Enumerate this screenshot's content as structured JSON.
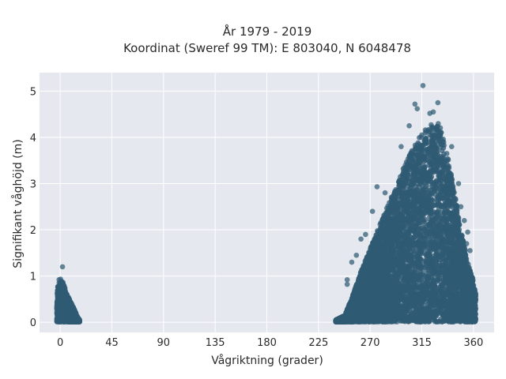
{
  "chart_data": {
    "type": "scatter",
    "title_line1": "År 1979 - 2019",
    "title_line2": "Koordinat (Sweref 99 TM): E 803040, N 6048478",
    "xlabel": "Vågriktning (grader)",
    "ylabel": "Signifikant våghöjd (m)",
    "xlim": [
      -18,
      378
    ],
    "ylim": [
      -0.22,
      5.4
    ],
    "xticks": [
      0,
      45,
      90,
      135,
      180,
      225,
      270,
      315,
      360
    ],
    "yticks": [
      0,
      1,
      2,
      3,
      4,
      5
    ],
    "grid": true,
    "marker_color": "#2f5a73",
    "background_color": "#e5e8ef",
    "grid_color": "#ffffff",
    "clusters": [
      {
        "description": "north sector",
        "x_range": [
          -3,
          17
        ],
        "y_max_envelope": [
          [
            -3,
            0.7
          ],
          [
            0,
            0.95
          ],
          [
            3,
            0.85
          ],
          [
            6,
            0.6
          ],
          [
            9,
            0.45
          ],
          [
            12,
            0.3
          ],
          [
            15,
            0.12
          ],
          [
            17,
            0.05
          ]
        ]
      },
      {
        "description": "west/north-west sector",
        "x_range": [
          240,
          362
        ],
        "y_max_envelope": [
          [
            240,
            0.05
          ],
          [
            248,
            0.15
          ],
          [
            255,
            0.6
          ],
          [
            262,
            1.1
          ],
          [
            270,
            1.6
          ],
          [
            280,
            2.2
          ],
          [
            290,
            2.8
          ],
          [
            300,
            3.4
          ],
          [
            310,
            3.9
          ],
          [
            318,
            4.2
          ],
          [
            325,
            4.3
          ],
          [
            330,
            4.3
          ],
          [
            335,
            3.9
          ],
          [
            340,
            3.3
          ],
          [
            345,
            2.6
          ],
          [
            350,
            1.9
          ],
          [
            355,
            1.3
          ],
          [
            360,
            0.9
          ],
          [
            362,
            0.6
          ]
        ]
      }
    ],
    "outliers": [
      {
        "x": 316,
        "y": 5.12
      },
      {
        "x": 309,
        "y": 4.72
      },
      {
        "x": 311,
        "y": 4.62
      },
      {
        "x": 329,
        "y": 4.75
      },
      {
        "x": 325,
        "y": 4.55
      },
      {
        "x": 322,
        "y": 4.52
      },
      {
        "x": 304,
        "y": 4.25
      },
      {
        "x": 297,
        "y": 3.8
      },
      {
        "x": 276,
        "y": 2.93
      },
      {
        "x": 283,
        "y": 2.8
      },
      {
        "x": 272,
        "y": 2.4
      },
      {
        "x": 266,
        "y": 1.9
      },
      {
        "x": 262,
        "y": 1.8
      },
      {
        "x": 258,
        "y": 1.45
      },
      {
        "x": 254,
        "y": 1.3
      },
      {
        "x": 250,
        "y": 0.92
      },
      {
        "x": 250,
        "y": 0.82
      },
      {
        "x": 341,
        "y": 3.8
      },
      {
        "x": 347,
        "y": 3.0
      },
      {
        "x": 352,
        "y": 2.2
      },
      {
        "x": 355,
        "y": 1.95
      },
      {
        "x": 357,
        "y": 1.55
      },
      {
        "x": 354,
        "y": 1.7
      },
      {
        "x": 349,
        "y": 2.5
      },
      {
        "x": 2,
        "y": 1.2
      },
      {
        "x": -1,
        "y": 0.92
      },
      {
        "x": 0,
        "y": 0.86
      },
      {
        "x": 4,
        "y": 0.7
      },
      {
        "x": 8,
        "y": 0.5
      },
      {
        "x": 240,
        "y": 0.03
      },
      {
        "x": 242,
        "y": 0.05
      }
    ]
  }
}
